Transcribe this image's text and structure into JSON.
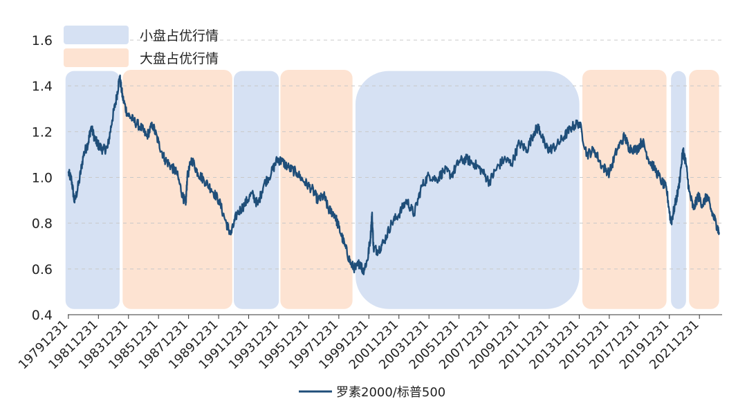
{
  "chart_data": {
    "type": "line",
    "title": "",
    "xlabel": "",
    "ylabel": "",
    "ylim": [
      0.4,
      1.6
    ],
    "yticks": [
      0.4,
      0.6,
      0.8,
      1.0,
      1.2,
      1.4,
      1.6
    ],
    "ytick_labels": [
      "0.4",
      "0.6",
      "0.8",
      "1.0",
      "1.2",
      "1.4",
      "1.6"
    ],
    "xlim": [
      1979.95,
      2023.5
    ],
    "xticks": [
      1979.99,
      1981.99,
      1983.99,
      1985.99,
      1987.99,
      1989.99,
      1991.99,
      1993.99,
      1995.99,
      1997.99,
      1999.99,
      2001.99,
      2003.99,
      2005.99,
      2007.99,
      2009.99,
      2011.99,
      2013.99,
      2015.99,
      2017.99,
      2019.99,
      2021.99
    ],
    "xtick_labels": [
      "19791231",
      "19811231",
      "19831231",
      "19851231",
      "19871231",
      "19891231",
      "19911231",
      "19931231",
      "19951231",
      "19971231",
      "19991231",
      "20011231",
      "20031231",
      "20051231",
      "20071231",
      "20091231",
      "20111231",
      "20131231",
      "20151231",
      "20171231",
      "20191231",
      "20211231"
    ],
    "grid": "horizontal dashed",
    "legend": {
      "position": "top-left",
      "region_small": "小盘占优行情",
      "region_large": "大盘占优行情",
      "series_label": "罗素2000/标普500"
    },
    "regions": [
      {
        "type": "small",
        "start": 1979.8,
        "end": 1983.4
      },
      {
        "type": "large",
        "start": 1983.6,
        "end": 1990.9
      },
      {
        "type": "small",
        "start": 1991.0,
        "end": 1994.0
      },
      {
        "type": "large",
        "start": 1994.1,
        "end": 1998.9
      },
      {
        "type": "small",
        "start": 1999.1,
        "end": 2014.0
      },
      {
        "type": "large",
        "start": 2014.2,
        "end": 2019.8
      },
      {
        "type": "small",
        "start": 2020.1,
        "end": 2021.1
      },
      {
        "type": "large",
        "start": 2021.3,
        "end": 2023.3
      }
    ],
    "series": [
      {
        "name": "罗素2000/标普500",
        "color": "#1f4e79",
        "x": [
          1979.99,
          1980.2,
          1980.4,
          1980.7,
          1981.0,
          1981.3,
          1981.5,
          1981.8,
          1982.0,
          1982.3,
          1982.6,
          1982.9,
          1983.2,
          1983.4,
          1983.6,
          1983.9,
          1984.3,
          1984.8,
          1985.2,
          1985.6,
          1986.0,
          1986.4,
          1986.8,
          1987.2,
          1987.6,
          1987.8,
          1987.9,
          1988.2,
          1988.6,
          1989.0,
          1989.5,
          1990.0,
          1990.5,
          1990.8,
          1991.2,
          1991.7,
          1992.2,
          1992.6,
          1993.0,
          1993.5,
          1993.9,
          1994.2,
          1994.7,
          1995.2,
          1995.7,
          1996.2,
          1996.6,
          1997.0,
          1997.3,
          1997.7,
          1998.0,
          1998.4,
          1998.8,
          1999.1,
          1999.4,
          1999.6,
          1999.9,
          2000.1,
          2000.2,
          2000.3,
          2000.6,
          2001.0,
          2001.5,
          2002.0,
          2002.5,
          2003.0,
          2003.5,
          2004.0,
          2004.5,
          2005.0,
          2005.5,
          2006.0,
          2006.5,
          2007.0,
          2007.5,
          2008.0,
          2008.5,
          2009.0,
          2009.5,
          2010.0,
          2010.5,
          2011.0,
          2011.3,
          2011.7,
          2012.0,
          2012.5,
          2013.0,
          2013.5,
          2014.0,
          2014.5,
          2015.0,
          2015.5,
          2016.0,
          2016.5,
          2017.0,
          2017.3,
          2017.8,
          2018.2,
          2018.6,
          2019.0,
          2019.5,
          2019.8,
          2020.1,
          2020.3,
          2020.6,
          2020.9,
          2021.1,
          2021.3,
          2021.6,
          2021.9,
          2022.2,
          2022.5,
          2022.8,
          2023.1,
          2023.3
        ],
        "values": [
          1.02,
          0.99,
          0.89,
          0.98,
          1.1,
          1.15,
          1.22,
          1.16,
          1.14,
          1.12,
          1.13,
          1.25,
          1.35,
          1.44,
          1.35,
          1.28,
          1.25,
          1.22,
          1.18,
          1.23,
          1.15,
          1.08,
          1.05,
          1.02,
          0.92,
          0.88,
          1.0,
          1.08,
          1.02,
          0.99,
          0.95,
          0.9,
          0.8,
          0.75,
          0.84,
          0.88,
          0.93,
          0.88,
          0.97,
          1.02,
          1.08,
          1.07,
          1.04,
          1.02,
          0.98,
          0.95,
          0.9,
          0.92,
          0.86,
          0.84,
          0.78,
          0.7,
          0.62,
          0.6,
          0.63,
          0.59,
          0.64,
          0.74,
          0.84,
          0.69,
          0.68,
          0.72,
          0.8,
          0.84,
          0.9,
          0.84,
          0.96,
          1.01,
          0.99,
          1.03,
          1.01,
          1.07,
          1.08,
          1.06,
          1.03,
          0.98,
          1.04,
          1.08,
          1.06,
          1.15,
          1.12,
          1.2,
          1.22,
          1.14,
          1.12,
          1.14,
          1.18,
          1.22,
          1.24,
          1.1,
          1.12,
          1.05,
          1.02,
          1.12,
          1.18,
          1.13,
          1.12,
          1.16,
          1.08,
          1.04,
          0.98,
          0.95,
          0.8,
          0.86,
          0.95,
          1.12,
          1.06,
          0.94,
          0.86,
          0.92,
          0.88,
          0.92,
          0.85,
          0.8,
          0.76
        ]
      }
    ]
  }
}
